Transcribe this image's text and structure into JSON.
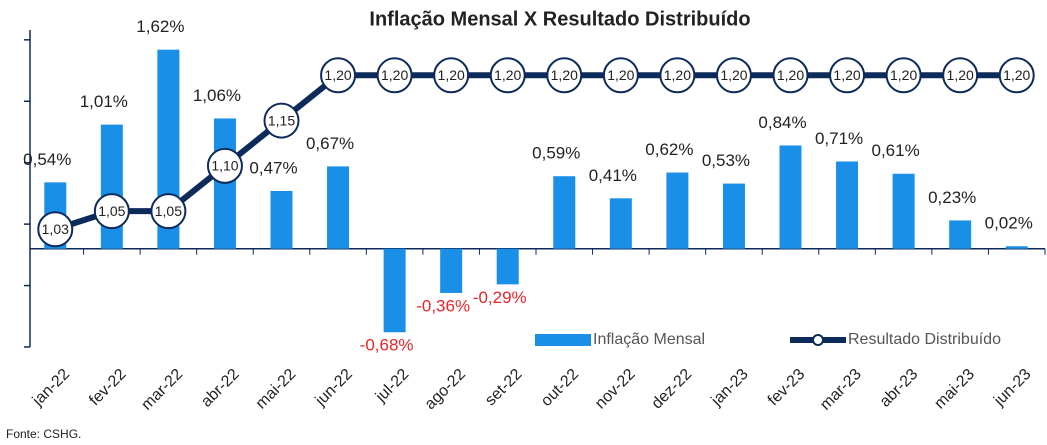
{
  "chart_data": {
    "type": "bar",
    "title": "Inflação Mensal X Resultado Distribuído",
    "source": "Fonte: CSHG.",
    "categories": [
      "jan-22",
      "fev-22",
      "mar-22",
      "abr-22",
      "mai-22",
      "jun-22",
      "jul-22",
      "ago-22",
      "set-22",
      "out-22",
      "nov-22",
      "dez-22",
      "jan-23",
      "fev-23",
      "mar-23",
      "abr-23",
      "mai-23",
      "jun-23"
    ],
    "series": [
      {
        "name": "Inflação Mensal",
        "type": "bar",
        "color": "#1a8fe8",
        "negative_label_color": "#e8262a",
        "values": [
          0.54,
          1.01,
          1.62,
          1.06,
          0.47,
          0.67,
          -0.68,
          -0.36,
          -0.29,
          0.59,
          0.41,
          0.62,
          0.53,
          0.84,
          0.71,
          0.61,
          0.23,
          0.02
        ],
        "value_labels": [
          "0,54%",
          "1,01%",
          "1,62%",
          "1,06%",
          "0,47%",
          "0,67%",
          "-0,68%",
          "-0,36%",
          "-0,29%",
          "0,59%",
          "0,41%",
          "0,62%",
          "0,53%",
          "0,84%",
          "0,71%",
          "0,61%",
          "0,23%",
          "0,02%"
        ]
      },
      {
        "name": "Resultado Distribuído",
        "type": "line",
        "axis": "y2",
        "color": "#0d2b5a",
        "values": [
          1.03,
          1.05,
          1.05,
          1.1,
          1.15,
          1.2,
          1.2,
          1.2,
          1.2,
          1.2,
          1.2,
          1.2,
          1.2,
          1.2,
          1.2,
          1.2,
          1.2,
          1.2
        ],
        "value_labels": [
          "1,03",
          "1,05",
          "1,05",
          "1,10",
          "1,15",
          "1,20",
          "1,20",
          "1,20",
          "1,20",
          "1,20",
          "1,20",
          "1,20",
          "1,20",
          "1,20",
          "1,20",
          "1,20",
          "1,20",
          "1,20"
        ]
      }
    ],
    "ylim": [
      -0.8,
      1.78
    ],
    "yticks": [
      -0.8,
      -0.3,
      0.2,
      0.7,
      1.2,
      1.7
    ],
    "y2lim": [
      0.9,
      1.25
    ]
  }
}
